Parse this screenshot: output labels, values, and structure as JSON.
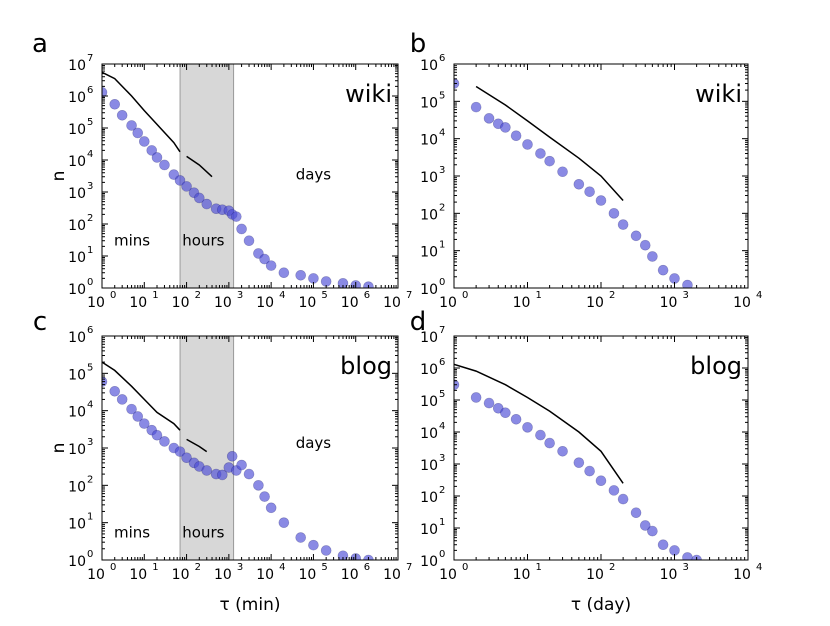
{
  "chart_data": [
    {
      "panel": "a",
      "type": "scatter",
      "label": "wiki",
      "xscale": "log",
      "yscale": "log",
      "xlim_exp": [
        0,
        7
      ],
      "ylim_exp": [
        0,
        7
      ],
      "ylabel": "n",
      "xlabel": "",
      "regions": [
        {
          "text": "mins",
          "x": 2.0,
          "y": 21
        },
        {
          "text": "hours",
          "x": 250,
          "y": 21
        },
        {
          "text": "days",
          "x": 100000,
          "y": 2500
        }
      ],
      "band": [
        70,
        1300
      ],
      "fit_segments": [
        {
          "x": [
            1,
            2,
            5,
            10,
            20,
            50,
            70
          ],
          "y": [
            5500000,
            3500000,
            1000000,
            350000,
            130000,
            35000,
            18000
          ]
        },
        {
          "x": [
            100,
            200,
            400
          ],
          "y": [
            13000,
            7000,
            3000
          ]
        }
      ],
      "points": {
        "x": [
          1,
          2,
          3,
          5,
          7,
          10,
          15,
          20,
          30,
          50,
          70,
          100,
          150,
          200,
          300,
          500,
          700,
          1000,
          1200,
          1500,
          2000,
          3000,
          5000,
          7000,
          10000,
          20000,
          50000,
          100000,
          200000,
          500000,
          1000000,
          2000000
        ],
        "y": [
          1300000,
          550000,
          250000,
          120000,
          70000,
          38000,
          20000,
          12000,
          7000,
          3500,
          2300,
          1500,
          950,
          650,
          420,
          300,
          280,
          260,
          200,
          170,
          70,
          30,
          12,
          8,
          5,
          3,
          2.5,
          2,
          1.6,
          1.4,
          1.2,
          1.1
        ]
      }
    },
    {
      "panel": "b",
      "type": "scatter",
      "label": "wiki",
      "xscale": "log",
      "yscale": "log",
      "xlim_exp": [
        0,
        4
      ],
      "ylim_exp": [
        0,
        6
      ],
      "ylabel": "",
      "xlabel": "",
      "fit_segments": [
        {
          "x": [
            2,
            5,
            10,
            20,
            50,
            100,
            200
          ],
          "y": [
            250000,
            80000,
            30000,
            11000,
            3000,
            1000,
            220
          ]
        }
      ],
      "points": {
        "x": [
          1,
          2,
          3,
          4,
          5,
          7,
          10,
          15,
          20,
          30,
          50,
          70,
          100,
          150,
          200,
          300,
          400,
          500,
          700,
          1000,
          1500
        ],
        "y": [
          300000,
          70000,
          35000,
          25000,
          20000,
          12000,
          7000,
          4000,
          2500,
          1300,
          600,
          380,
          220,
          100,
          50,
          25,
          14,
          7,
          3,
          1.8,
          1.2
        ]
      }
    },
    {
      "panel": "c",
      "type": "scatter",
      "label": "blog",
      "xscale": "log",
      "yscale": "log",
      "xlim_exp": [
        0,
        7
      ],
      "ylim_exp": [
        0,
        6
      ],
      "ylabel": "n",
      "xlabel": "τ (min)",
      "regions": [
        {
          "text": "mins",
          "x": 2.0,
          "y": 4
        },
        {
          "text": "hours",
          "x": 250,
          "y": 4
        },
        {
          "text": "days",
          "x": 100000,
          "y": 1000
        }
      ],
      "band": [
        70,
        1300
      ],
      "fit_segments": [
        {
          "x": [
            1,
            2,
            5,
            10,
            20,
            50,
            70
          ],
          "y": [
            200000,
            120000,
            45000,
            20000,
            9000,
            4500,
            3000
          ]
        },
        {
          "x": [
            100,
            200,
            300
          ],
          "y": [
            1700,
            1100,
            800
          ]
        }
      ],
      "points": {
        "x": [
          1,
          2,
          3,
          5,
          7,
          10,
          15,
          20,
          30,
          50,
          70,
          100,
          150,
          200,
          300,
          500,
          700,
          1000,
          1200,
          1500,
          2000,
          3000,
          5000,
          7000,
          10000,
          20000,
          50000,
          100000,
          200000,
          500000,
          1000000,
          2000000
        ],
        "y": [
          60000,
          33000,
          20000,
          11000,
          7000,
          4500,
          3000,
          2200,
          1500,
          1000,
          800,
          550,
          400,
          320,
          250,
          200,
          190,
          300,
          600,
          250,
          350,
          200,
          100,
          50,
          25,
          10,
          4,
          2.5,
          1.8,
          1.3,
          1.1,
          1.0
        ]
      }
    },
    {
      "panel": "d",
      "type": "scatter",
      "label": "blog",
      "xscale": "log",
      "yscale": "log",
      "xlim_exp": [
        0,
        4
      ],
      "ylim_exp": [
        0,
        7
      ],
      "ylabel": "",
      "xlabel": "τ (day)",
      "fit_segments": [
        {
          "x": [
            1,
            2,
            5,
            10,
            20,
            50,
            100,
            200
          ],
          "y": [
            1300000,
            800000,
            300000,
            120000,
            45000,
            10000,
            2500,
            250
          ]
        }
      ],
      "points": {
        "x": [
          1,
          2,
          3,
          4,
          5,
          7,
          10,
          15,
          20,
          30,
          50,
          70,
          100,
          150,
          200,
          300,
          400,
          500,
          700,
          1000,
          1500,
          2000
        ],
        "y": [
          300000,
          120000,
          80000,
          55000,
          40000,
          25000,
          14000,
          8000,
          4500,
          2500,
          1100,
          600,
          300,
          150,
          80,
          30,
          12,
          8,
          3,
          2,
          1.2,
          1.0
        ]
      }
    }
  ]
}
